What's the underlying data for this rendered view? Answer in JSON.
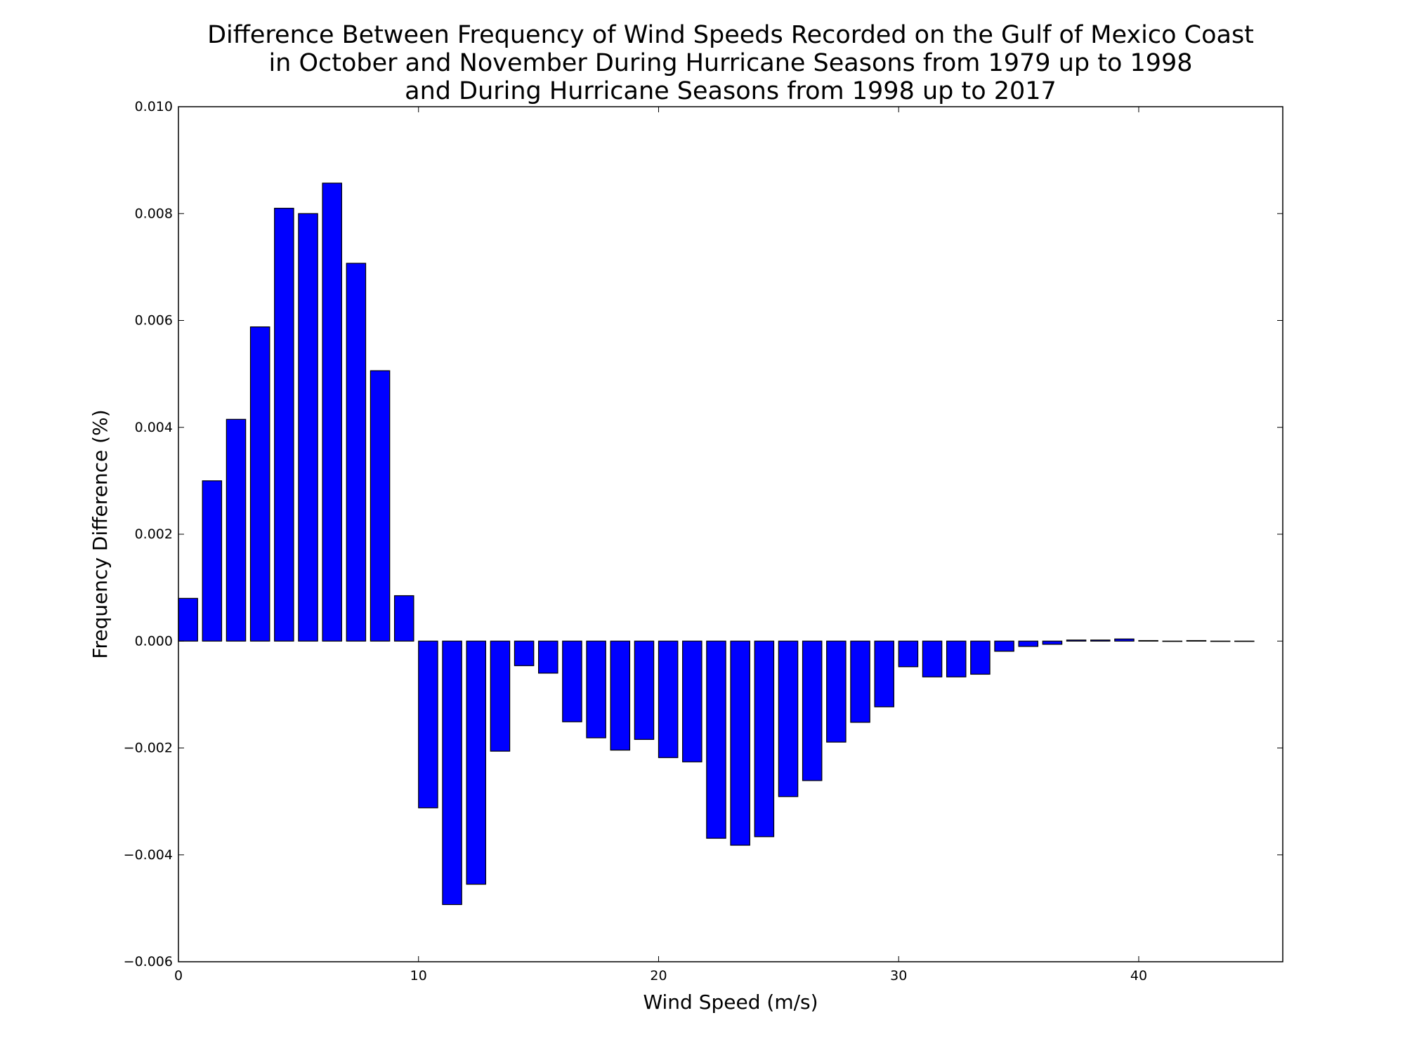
{
  "chart_data": {
    "type": "bar",
    "title_lines": [
      "Difference Between Frequency of Wind Speeds Recorded on the Gulf of Mexico Coast",
      "in October and November During Hurricane Seasons from 1979 up to 1998",
      "and During Hurricane Seasons from 1998 up to 2017"
    ],
    "xlabel": "Wind Speed (m/s)",
    "ylabel": "Frequency Difference (%)",
    "xlim": [
      0,
      46
    ],
    "ylim": [
      -0.006,
      0.01
    ],
    "xticks": [
      0,
      10,
      20,
      30,
      40
    ],
    "yticks": [
      -0.006,
      -0.004,
      -0.002,
      0.0,
      0.002,
      0.004,
      0.006,
      0.008,
      0.01
    ],
    "ytick_labels": [
      "−0.006",
      "−0.004",
      "−0.002",
      "0.000",
      "0.002",
      "0.004",
      "0.006",
      "0.008",
      "0.010"
    ],
    "xtick_labels": [
      "0",
      "10",
      "20",
      "30",
      "40"
    ],
    "bar_width": 0.8,
    "bar_color": "#0000ff",
    "edge_color": "#000000",
    "grid": false,
    "x": [
      0,
      1,
      2,
      3,
      4,
      5,
      6,
      7,
      8,
      9,
      10,
      11,
      12,
      13,
      14,
      15,
      16,
      17,
      18,
      19,
      20,
      21,
      22,
      23,
      24,
      25,
      26,
      27,
      28,
      29,
      30,
      31,
      32,
      33,
      34,
      35,
      36,
      37,
      38,
      39,
      40,
      41,
      42,
      43,
      44
    ],
    "values": [
      0.0008,
      0.003,
      0.00415,
      0.00588,
      0.0081,
      0.008,
      0.00857,
      0.00707,
      0.00506,
      0.00085,
      -0.00312,
      -0.00493,
      -0.00455,
      -0.00206,
      -0.00046,
      -0.0006,
      -0.00151,
      -0.00181,
      -0.00204,
      -0.00184,
      -0.00218,
      -0.00226,
      -0.00369,
      -0.00382,
      -0.00366,
      -0.00291,
      -0.00261,
      -0.00189,
      -0.00152,
      -0.00123,
      -0.00048,
      -0.00067,
      -0.00067,
      -0.00062,
      -0.00019,
      -0.0001,
      -6e-05,
      2e-05,
      2e-05,
      4e-05,
      1e-05,
      0.0,
      1e-05,
      0.0,
      0.0
    ]
  }
}
